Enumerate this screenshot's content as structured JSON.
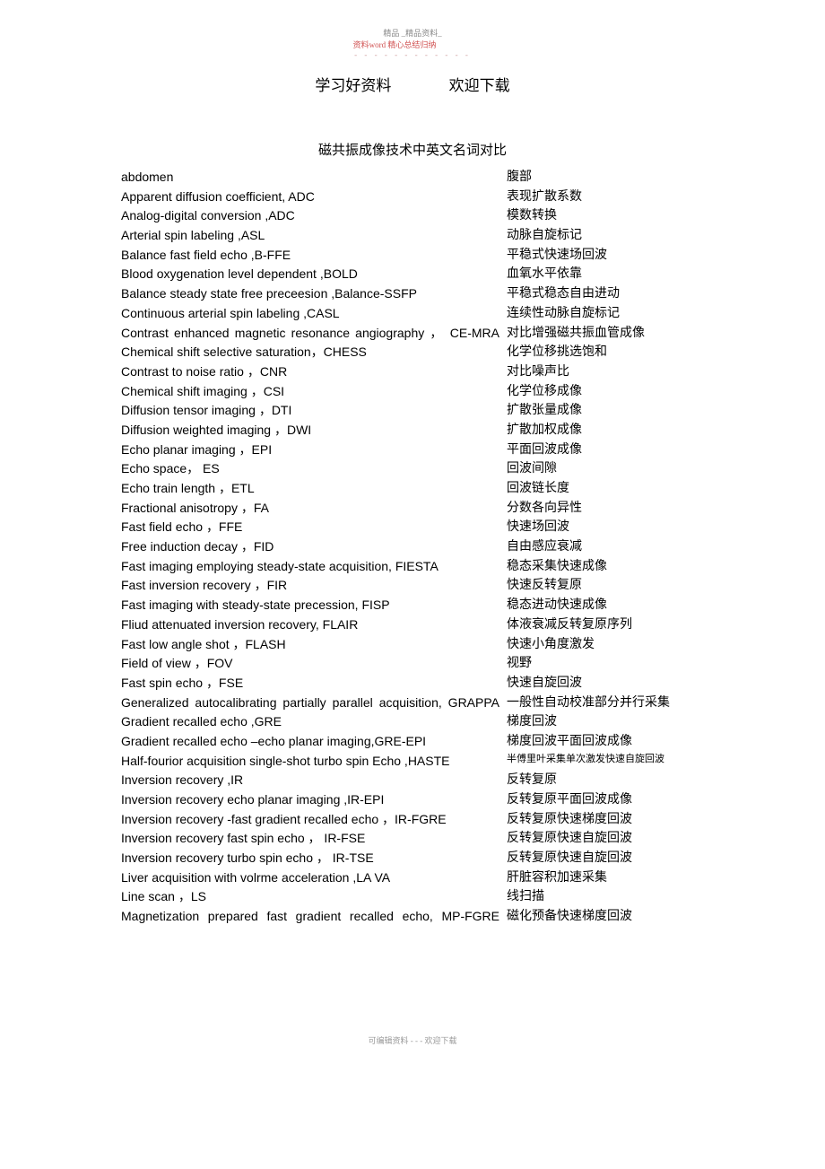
{
  "marks": {
    "line1": "精品 _精品资料_",
    "line2": "资料word   精心总结归纳",
    "line3": "- - - - - - - - - - - -"
  },
  "header": {
    "left": "学习好资料",
    "right": "欢迎下载"
  },
  "title": "磁共振成像技术中英文名词对比",
  "rows": [
    {
      "en": "abdomen",
      "cn": "腹部"
    },
    {
      "en": "Apparent diffusion coefficient, ADC",
      "cn": "表现扩散系数"
    },
    {
      "en": "Analog-digital conversion ,ADC",
      "cn": "模数转换"
    },
    {
      "en": "Arterial spin labeling ,ASL",
      "cn": "动脉自旋标记"
    },
    {
      "en": "Balance fast field echo ,B-FFE",
      "cn": "平稳式快速场回波"
    },
    {
      "en": "Blood oxygenation level dependent ,BOLD",
      "cn": "血氧水平依靠"
    },
    {
      "en": "Balance steady state free preceesion ,Balance-SSFP",
      "cn": "平稳式稳态自由进动"
    },
    {
      "en": "Continuous arterial spin labeling ,CASL",
      "cn": "连续性动脉自旋标记"
    },
    {
      "en": "Contrast enhanced magnetic resonance angiography ， CE-MRA",
      "cn": "对比增强磁共振血管成像",
      "justify": true
    },
    {
      "en": "Chemical shift selective saturation，CHESS",
      "cn": "化学位移挑选饱和"
    },
    {
      "en": "Contrast to noise ratio ，CNR",
      "cn": "对比噪声比"
    },
    {
      "en": "Chemical shift imaging   ，CSI",
      "cn": "化学位移成像"
    },
    {
      "en": "Diffusion tensor imaging   ，DTI",
      "cn": "扩散张量成像"
    },
    {
      "en": "Diffusion weighted imaging   ，DWI",
      "cn": "扩散加权成像"
    },
    {
      "en": "Echo planar imaging  ，EPI",
      "cn": "平面回波成像"
    },
    {
      "en": "Echo space，  ES",
      "cn": "回波间隙"
    },
    {
      "en": "Echo train length  ，ETL",
      "cn": "回波链长度"
    },
    {
      "en": "Fractional anisotropy  ，FA",
      "cn": "分数各向异性"
    },
    {
      "en": "Fast field echo ，FFE",
      "cn": "快速场回波"
    },
    {
      "en": "Free induction decay ，FID",
      "cn": "自由感应衰减"
    },
    {
      "en": "Fast imaging employing steady-state acquisition, FIESTA",
      "cn": "稳态采集快速成像"
    },
    {
      "en": "Fast inversion recovery  ，FIR",
      "cn": "快速反转复原"
    },
    {
      "en": "Fast imaging with steady-state precession, FISP",
      "cn": "稳态进动快速成像"
    },
    {
      "en": "Fliud attenuated inversion recovery, FLAIR",
      "cn": "体液衰减反转复原序列"
    },
    {
      "en": "Fast low angle shot ，FLASH",
      "cn": "快速小角度激发"
    },
    {
      "en": "Field of view   ，FOV",
      "cn": "视野"
    },
    {
      "en": "Fast spin echo ，FSE",
      "cn": "快速自旋回波"
    },
    {
      "en": "Generalized autocalibrating partially parallel acquisition, GRAPPA",
      "cn": "一般性自动校准部分并行采集",
      "justify": true
    },
    {
      "en": "Gradient recalled echo ,GRE",
      "cn": "梯度回波"
    },
    {
      "en": "Gradient recalled echo  –echo planar imaging,GRE-EPI",
      "cn": "梯度回波平面回波成像"
    },
    {
      "en": "Half-fourior acquisition single-shot turbo spin Echo ,HASTE",
      "cn": "半傅里叶采集单次激发快速自旋回波",
      "cnSmall": true
    },
    {
      "en": "Inversion recovery ,IR",
      "cn": "反转复原"
    },
    {
      "en": "Inversion recovery echo planar imaging ,IR-EPI",
      "cn": "反转复原平面回波成像"
    },
    {
      "en": "Inversion recovery   -fast gradient recalled echo ，IR-FGRE",
      "cn": "反转复原快速梯度回波"
    },
    {
      "en": "Inversion recovery fast spin echo ，               IR-FSE",
      "cn": "反转复原快速自旋回波"
    },
    {
      "en": "Inversion recovery turbo spin echo ，      IR-TSE",
      "cn": "反转复原快速自旋回波"
    },
    {
      "en": "Liver acquisition with volrme acceleration ,LA  VA",
      "cn": "肝脏容积加速采集"
    },
    {
      "en": "Line scan   ，LS",
      "cn": "线扫描"
    },
    {
      "en": "Magnetization prepared fast gradient recalled echo, MP-FGRE",
      "cn": "磁化预备快速梯度回波",
      "justify": true
    }
  ],
  "footer": "可编辑资料  - - -  欢迎下载"
}
